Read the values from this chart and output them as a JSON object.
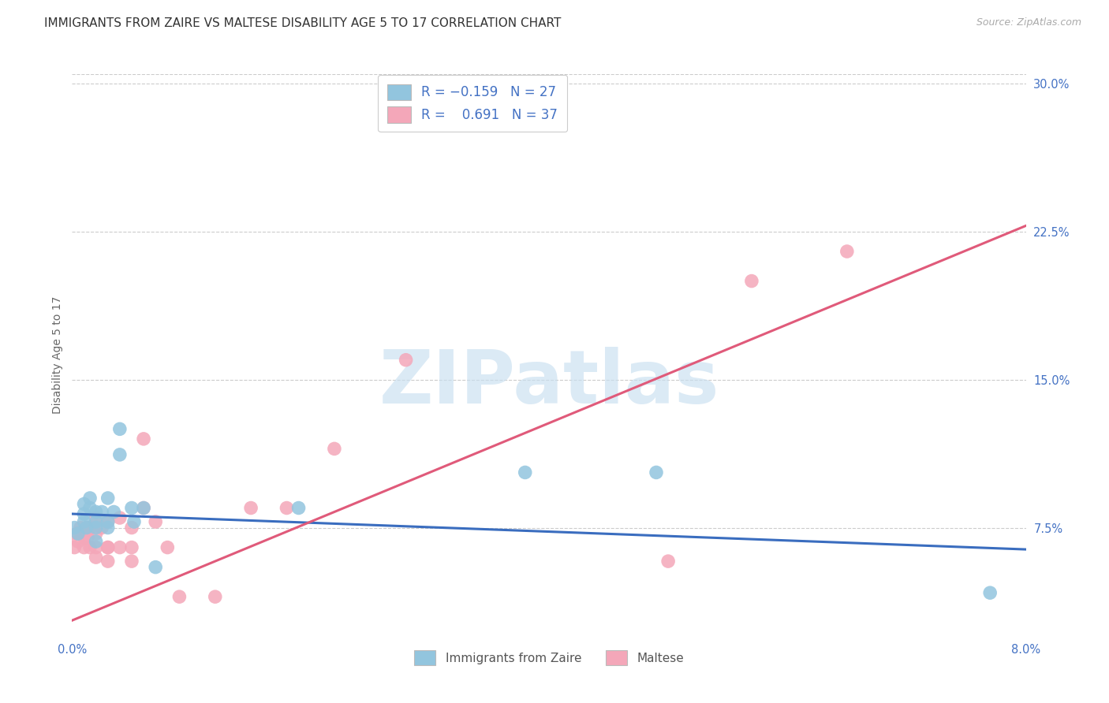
{
  "title": "IMMIGRANTS FROM ZAIRE VS MALTESE DISABILITY AGE 5 TO 17 CORRELATION CHART",
  "source": "Source: ZipAtlas.com",
  "ylabel": "Disability Age 5 to 17",
  "legend_label1": "Immigrants from Zaire",
  "legend_label2": "Maltese",
  "color_blue": "#92c5de",
  "color_pink": "#f4a7b9",
  "color_blue_line": "#3a6dbf",
  "color_pink_line": "#e05a7a",
  "color_axis_label": "#4472C4",
  "xmin": 0.0,
  "xmax": 0.08,
  "ymin": 0.02,
  "ymax": 0.305,
  "blue_scatter_x": [
    0.0002,
    0.0005,
    0.001,
    0.001,
    0.001,
    0.0012,
    0.0015,
    0.0015,
    0.002,
    0.002,
    0.002,
    0.002,
    0.0025,
    0.003,
    0.003,
    0.003,
    0.0035,
    0.004,
    0.004,
    0.005,
    0.0052,
    0.006,
    0.007,
    0.019,
    0.038,
    0.049,
    0.077
  ],
  "blue_scatter_y": [
    0.075,
    0.072,
    0.082,
    0.078,
    0.087,
    0.075,
    0.085,
    0.09,
    0.078,
    0.083,
    0.075,
    0.068,
    0.083,
    0.078,
    0.09,
    0.075,
    0.083,
    0.125,
    0.112,
    0.085,
    0.078,
    0.085,
    0.055,
    0.085,
    0.103,
    0.103,
    0.042
  ],
  "pink_scatter_x": [
    0.0002,
    0.0004,
    0.0005,
    0.0007,
    0.001,
    0.001,
    0.0012,
    0.0013,
    0.0015,
    0.0015,
    0.002,
    0.002,
    0.002,
    0.002,
    0.0025,
    0.003,
    0.003,
    0.003,
    0.003,
    0.004,
    0.004,
    0.005,
    0.005,
    0.005,
    0.006,
    0.006,
    0.007,
    0.008,
    0.009,
    0.012,
    0.015,
    0.018,
    0.022,
    0.028,
    0.05,
    0.057,
    0.065
  ],
  "pink_scatter_y": [
    0.065,
    0.072,
    0.068,
    0.075,
    0.07,
    0.065,
    0.075,
    0.07,
    0.075,
    0.065,
    0.08,
    0.072,
    0.065,
    0.06,
    0.075,
    0.078,
    0.065,
    0.058,
    0.065,
    0.08,
    0.065,
    0.075,
    0.065,
    0.058,
    0.085,
    0.12,
    0.078,
    0.065,
    0.04,
    0.04,
    0.085,
    0.085,
    0.115,
    0.16,
    0.058,
    0.2,
    0.215
  ],
  "blue_line_x": [
    0.0,
    0.08
  ],
  "blue_line_y": [
    0.082,
    0.064
  ],
  "pink_line_x": [
    0.0,
    0.08
  ],
  "pink_line_y": [
    0.028,
    0.228
  ],
  "ytick_vals": [
    0.075,
    0.15,
    0.225,
    0.3
  ],
  "ytick_labels": [
    "7.5%",
    "15.0%",
    "22.5%",
    "30.0%"
  ],
  "grid_color": "#cccccc",
  "bg_color": "#ffffff",
  "title_fontsize": 11,
  "label_fontsize": 10,
  "tick_fontsize": 10.5,
  "watermark_text": "ZIPatlas",
  "watermark_color": "#c8dff0",
  "watermark_alpha": 0.65
}
